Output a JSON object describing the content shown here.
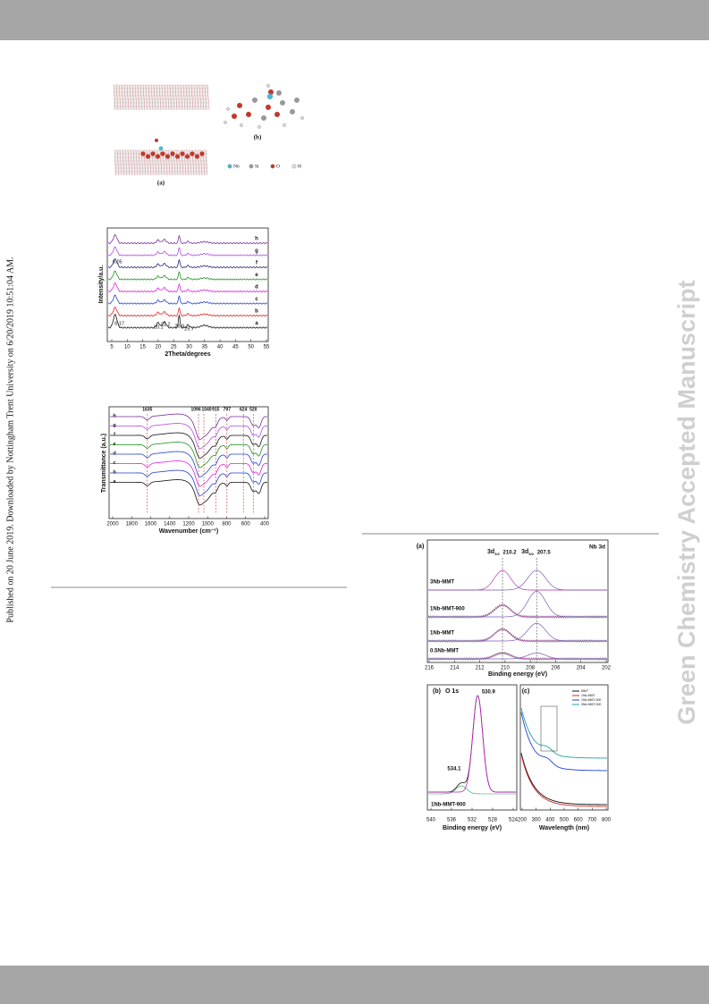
{
  "sidebar": "Published on 20 June 2019. Downloaded by Nottingham Trent University on 6/20/2019 10:51:04 AM.",
  "watermark": "Green Chemistry Accepted Manuscript",
  "figure1": {
    "panel_a": "(a)",
    "panel_b": "(b)",
    "legend": [
      "Nb",
      "Si",
      "O",
      "H"
    ]
  },
  "figure2": {
    "y_label": "Intensity/a.u.",
    "x_label": "2Theta/degrees",
    "x_ticks": [
      "5",
      "10",
      "15",
      "20",
      "25",
      "30",
      "35",
      "40",
      "45",
      "50",
      "55"
    ],
    "curve_labels": [
      "h",
      "g",
      "f",
      "e",
      "d",
      "c",
      "b",
      "a"
    ],
    "peaks": [
      "6.05",
      "6.17",
      "20.1",
      "22.2",
      "26.9",
      "29.7"
    ]
  },
  "figure3": {
    "y_label": "Transmittance (a.u.)",
    "x_label": "Wavenumber (cm⁻¹)",
    "x_ticks": [
      "2000",
      "1800",
      "1600",
      "1400",
      "1200",
      "1000",
      "800",
      "600",
      "400"
    ],
    "curve_labels": [
      "h",
      "g",
      "f",
      "e",
      "d",
      "c",
      "b",
      "a"
    ],
    "peaks": [
      "1635",
      "1096",
      "1040",
      "915",
      "797",
      "624",
      "520"
    ]
  },
  "figure4": {
    "panel_a": {
      "tag": "(a)",
      "title": "Nb 3d",
      "peaks": [
        {
          "label": "3d",
          "sub": "3/2",
          "energy": "210.2"
        },
        {
          "label": "3d",
          "sub": "5/2",
          "energy": "207.5"
        }
      ],
      "samples": [
        "3Nb-MMT",
        "1Nb-MMT-900",
        "1Nb-MMT",
        "0.5Nb-MMT"
      ],
      "x_ticks": [
        "216",
        "214",
        "212",
        "210",
        "208",
        "206",
        "204",
        "202"
      ],
      "x_label": "Binding energy (eV)"
    },
    "panel_b": {
      "tag": "(b)",
      "title": "O 1s",
      "peaks": [
        "534.1",
        "530.9"
      ],
      "sample": "1Nb-MMT-900",
      "x_ticks": [
        "540",
        "536",
        "532",
        "528",
        "524"
      ],
      "x_label": "Binding energy (eV)"
    },
    "panel_c": {
      "tag": "(c)",
      "legend": [
        "MMT",
        "1Nb-MMT",
        "1Nb-MMT-900",
        "3Nb-MMT-900"
      ],
      "x_ticks": [
        "200",
        "300",
        "400",
        "500",
        "600",
        "700",
        "800"
      ],
      "x_label": "Wavelength (nm)"
    }
  }
}
